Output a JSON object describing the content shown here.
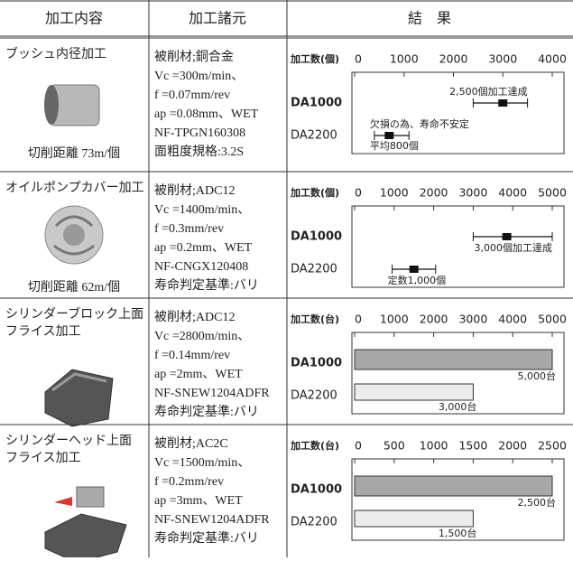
{
  "header": [
    "加工内容",
    "加工諸元",
    "結　果"
  ],
  "rows": [
    {
      "name": [
        "ブッシュ内径加工"
      ],
      "distance": "切削距離 73m/個",
      "specs": [
        "被削材;銅合金",
        "Vc =300m/min、",
        "f =0.07mm/rev",
        "ap =0.08mm、WET",
        "NF-TPGN160308",
        "面粗度規格:3.2S"
      ],
      "chart": {
        "type": "errorbar",
        "axis_label": "加工数(個)",
        "xlim": [
          0,
          4000
        ],
        "xticks": [
          0,
          1000,
          2000,
          3000,
          4000
        ],
        "categories": [
          "DA1000",
          "DA2200"
        ],
        "values": [
          3000,
          700
        ],
        "low": [
          2400,
          400
        ],
        "high": [
          3500,
          1100
        ],
        "notes": [
          [
            "2,500個加工達成"
          ],
          [
            "欠損の為、寿命不安定",
            "平均800個"
          ]
        ]
      }
    },
    {
      "name": [
        "オイルポンプカバー加工"
      ],
      "distance": "切削距離 62m/個",
      "specs": [
        "被削材;ADC12",
        "Vc =1400m/min、",
        "f =0.3mm/rev",
        "ap =0.2mm、WET",
        "NF-CNGX120408",
        "寿命判定基準:バリ"
      ],
      "chart": {
        "type": "errorbar",
        "axis_label": "加工数(個)",
        "xlim": [
          0,
          5000
        ],
        "xticks": [
          0,
          1000,
          2000,
          3000,
          4000,
          5000
        ],
        "categories": [
          "DA1000",
          "DA2200"
        ],
        "values": [
          3850,
          1500
        ],
        "low": [
          3000,
          950
        ],
        "high": [
          5000,
          2050
        ],
        "notes": [
          [
            "3,000個加工達成"
          ],
          [
            "定数1,000個"
          ]
        ]
      }
    },
    {
      "name": [
        "シリンダーブロック上面",
        "フライス加工"
      ],
      "specs": [
        "被削材;ADC12",
        "Vc =2800m/min、",
        "f =0.14mm/rev",
        "ap =2mm、WET",
        "NF-SNEW1204ADFR",
        "寿命判定基準:バリ"
      ],
      "chart": {
        "type": "bar",
        "axis_label": "加工数(台)",
        "xlim": [
          0,
          5000
        ],
        "xticks": [
          0,
          1000,
          2000,
          3000,
          4000,
          5000
        ],
        "categories": [
          "DA1000",
          "DA2200"
        ],
        "values": [
          5000,
          3000
        ],
        "value_labels": [
          "5,000台",
          "3,000台"
        ],
        "colors": [
          "#a8a8a8",
          "#ececec"
        ]
      }
    },
    {
      "name": [
        "シリンダーヘッド上面",
        "フライス加工"
      ],
      "specs": [
        "被削材;AC2C",
        "Vc =1500m/min、",
        "f =0.2mm/rev",
        "ap =3mm、WET",
        "NF-SNEW1204ADFR",
        "寿命判定基準:バリ"
      ],
      "chart": {
        "type": "bar",
        "axis_label": "加工数(台)",
        "xlim": [
          0,
          2500
        ],
        "xticks": [
          0,
          500,
          1000,
          1500,
          2000,
          2500
        ],
        "categories": [
          "DA1000",
          "DA2200"
        ],
        "values": [
          2500,
          1500
        ],
        "value_labels": [
          "2,500台",
          "1,500台"
        ],
        "colors": [
          "#a8a8a8",
          "#ececec"
        ]
      }
    }
  ]
}
